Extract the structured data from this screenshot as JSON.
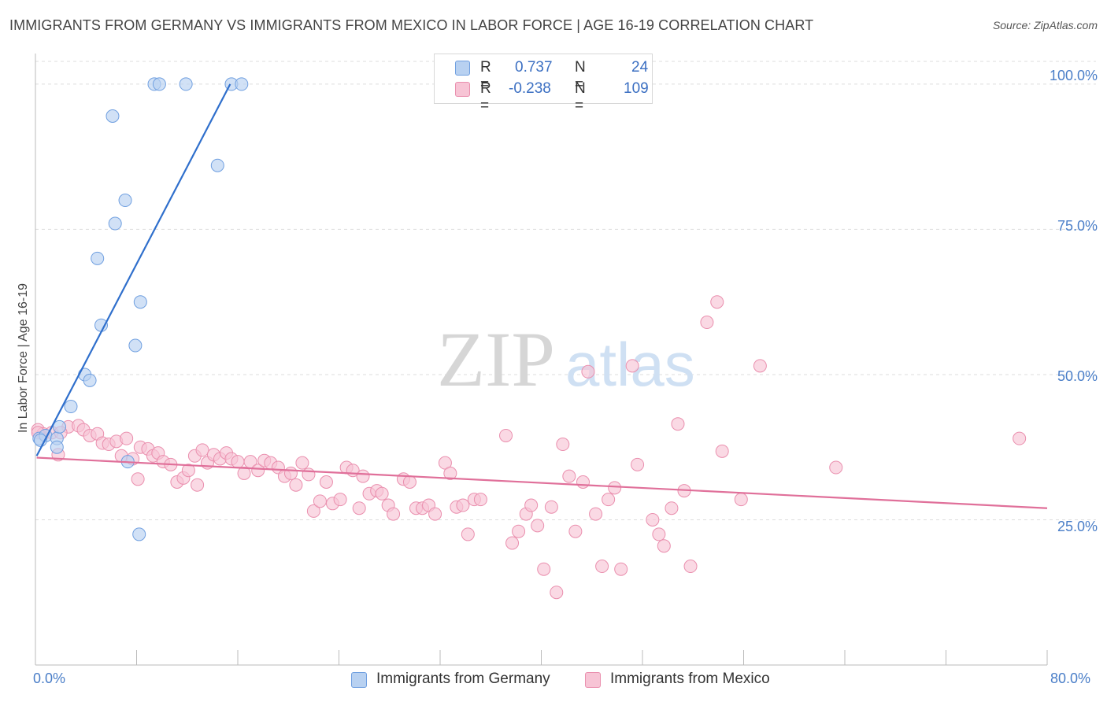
{
  "title": "IMMIGRANTS FROM GERMANY VS IMMIGRANTS FROM MEXICO IN LABOR FORCE | AGE 16-19 CORRELATION CHART",
  "source": "Source: ZipAtlas.com",
  "watermark": {
    "zip": "ZIP",
    "atlas": "atlas"
  },
  "legend": {
    "r_label": "R =",
    "n_label": "N =",
    "rows": [
      {
        "r": "0.737",
        "n": "24"
      },
      {
        "r": "-0.238",
        "n": "109"
      }
    ]
  },
  "colors": {
    "germany_fill": "#b8d1f1",
    "germany_stroke": "#6f9fe0",
    "germany_line": "#2f6fcc",
    "mexico_fill": "#f7c4d5",
    "mexico_stroke": "#ea8fae",
    "mexico_line": "#e0709a",
    "grid": "#dddddd",
    "tick_text": "#4a7ec8"
  },
  "chart_data": {
    "type": "scatter",
    "title": "IMMIGRANTS FROM GERMANY VS IMMIGRANTS FROM MEXICO IN LABOR FORCE | AGE 16-19 CORRELATION CHART",
    "xlabel": "",
    "ylabel": "In Labor Force | Age 16-19",
    "xlim": [
      0,
      80
    ],
    "ylim": [
      0,
      105
    ],
    "y_ticks": [
      25,
      50,
      75,
      100
    ],
    "y_tick_labels": [
      "25.0%",
      "50.0%",
      "75.0%",
      "100.0%"
    ],
    "x_tick_labels": [
      "0.0%",
      "80.0%"
    ],
    "legend_position": "top-center",
    "series": [
      {
        "name": "Immigrants from Germany",
        "r": 0.737,
        "n": 24,
        "trend": [
          [
            0.1,
            36.0
          ],
          [
            15.4,
            100.0
          ]
        ],
        "points": [
          [
            0.3,
            39.0
          ],
          [
            0.8,
            39.5
          ],
          [
            1.7,
            39.0
          ],
          [
            1.9,
            41.0
          ],
          [
            1.7,
            37.5
          ],
          [
            2.8,
            44.5
          ],
          [
            3.9,
            50.0
          ],
          [
            4.3,
            49.0
          ],
          [
            5.2,
            58.5
          ],
          [
            4.9,
            70.0
          ],
          [
            6.3,
            76.0
          ],
          [
            6.1,
            94.5
          ],
          [
            7.1,
            80.0
          ],
          [
            7.3,
            35.0
          ],
          [
            7.9,
            55.0
          ],
          [
            8.3,
            62.5
          ],
          [
            8.2,
            22.5
          ],
          [
            9.4,
            100.0
          ],
          [
            9.8,
            100.0
          ],
          [
            11.9,
            100.0
          ],
          [
            14.4,
            86.0
          ],
          [
            15.5,
            100.0
          ],
          [
            16.3,
            100.0
          ],
          [
            0.4,
            38.7
          ]
        ]
      },
      {
        "name": "Immigrants from Mexico",
        "r": -0.238,
        "n": 109,
        "trend": [
          [
            0.1,
            35.7
          ],
          [
            80.0,
            27.0
          ]
        ],
        "points": [
          [
            0.2,
            40.5
          ],
          [
            0.6,
            39.8
          ],
          [
            1.3,
            40.0
          ],
          [
            1.8,
            36.2
          ],
          [
            2.6,
            41.0
          ],
          [
            3.4,
            41.2
          ],
          [
            3.8,
            40.5
          ],
          [
            4.3,
            39.5
          ],
          [
            4.9,
            39.8
          ],
          [
            5.3,
            38.2
          ],
          [
            5.8,
            38.0
          ],
          [
            6.4,
            38.5
          ],
          [
            6.8,
            36.0
          ],
          [
            7.2,
            39.0
          ],
          [
            7.7,
            35.5
          ],
          [
            8.3,
            37.5
          ],
          [
            8.1,
            32.0
          ],
          [
            8.9,
            37.2
          ],
          [
            9.3,
            36.0
          ],
          [
            9.7,
            36.5
          ],
          [
            10.1,
            35.0
          ],
          [
            10.7,
            34.5
          ],
          [
            11.2,
            31.5
          ],
          [
            11.7,
            32.2
          ],
          [
            12.1,
            33.5
          ],
          [
            12.6,
            36.0
          ],
          [
            13.2,
            37.0
          ],
          [
            13.6,
            34.8
          ],
          [
            14.1,
            36.2
          ],
          [
            14.6,
            35.5
          ],
          [
            15.1,
            36.5
          ],
          [
            15.5,
            35.5
          ],
          [
            16.0,
            35.0
          ],
          [
            16.5,
            33.0
          ],
          [
            17.0,
            35.0
          ],
          [
            17.6,
            33.5
          ],
          [
            18.1,
            35.2
          ],
          [
            18.6,
            34.8
          ],
          [
            19.2,
            34.0
          ],
          [
            19.7,
            32.5
          ],
          [
            20.2,
            33.0
          ],
          [
            20.6,
            31.0
          ],
          [
            21.1,
            34.8
          ],
          [
            21.6,
            32.8
          ],
          [
            22.0,
            26.5
          ],
          [
            22.5,
            28.2
          ],
          [
            23.0,
            31.5
          ],
          [
            23.5,
            27.8
          ],
          [
            24.1,
            28.5
          ],
          [
            24.6,
            34.0
          ],
          [
            25.1,
            33.5
          ],
          [
            25.6,
            27.0
          ],
          [
            25.9,
            32.5
          ],
          [
            26.4,
            29.5
          ],
          [
            27.0,
            30.0
          ],
          [
            27.4,
            29.5
          ],
          [
            27.9,
            27.5
          ],
          [
            28.3,
            26.0
          ],
          [
            29.1,
            32.0
          ],
          [
            29.6,
            31.5
          ],
          [
            30.1,
            27.0
          ],
          [
            30.6,
            27.0
          ],
          [
            31.1,
            27.5
          ],
          [
            31.6,
            26.0
          ],
          [
            32.4,
            34.8
          ],
          [
            32.8,
            33.0
          ],
          [
            33.3,
            27.2
          ],
          [
            33.8,
            27.5
          ],
          [
            34.2,
            22.5
          ],
          [
            34.7,
            28.5
          ],
          [
            35.2,
            28.5
          ],
          [
            37.2,
            39.5
          ],
          [
            37.7,
            21.0
          ],
          [
            38.2,
            23.0
          ],
          [
            38.8,
            26.0
          ],
          [
            39.2,
            27.5
          ],
          [
            39.7,
            24.0
          ],
          [
            40.2,
            16.5
          ],
          [
            40.8,
            27.2
          ],
          [
            41.2,
            12.5
          ],
          [
            41.7,
            38.0
          ],
          [
            42.2,
            32.5
          ],
          [
            42.7,
            23.0
          ],
          [
            43.3,
            31.5
          ],
          [
            43.7,
            50.5
          ],
          [
            44.3,
            26.0
          ],
          [
            44.8,
            17.0
          ],
          [
            45.3,
            28.5
          ],
          [
            45.8,
            30.5
          ],
          [
            46.3,
            16.5
          ],
          [
            47.2,
            51.5
          ],
          [
            47.6,
            34.5
          ],
          [
            48.8,
            25.0
          ],
          [
            49.3,
            22.5
          ],
          [
            49.7,
            20.5
          ],
          [
            50.3,
            27.0
          ],
          [
            50.8,
            41.5
          ],
          [
            51.3,
            30.0
          ],
          [
            51.8,
            17.0
          ],
          [
            53.1,
            59.0
          ],
          [
            53.9,
            62.5
          ],
          [
            54.3,
            36.8
          ],
          [
            55.8,
            28.5
          ],
          [
            57.3,
            51.5
          ],
          [
            63.3,
            34.0
          ],
          [
            77.8,
            39.0
          ],
          [
            0.2,
            40.0
          ],
          [
            2.0,
            40.0
          ],
          [
            12.8,
            31.0
          ]
        ]
      }
    ]
  },
  "bottom_legend": [
    "Immigrants from Germany",
    "Immigrants from Mexico"
  ]
}
